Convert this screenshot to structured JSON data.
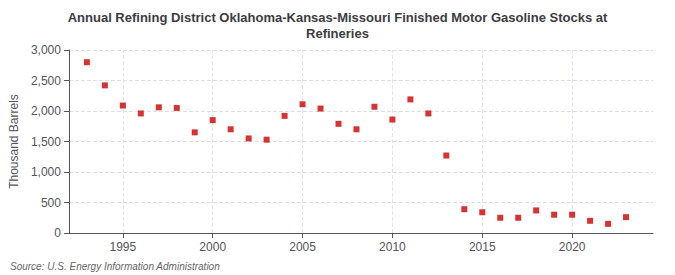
{
  "chart_data": {
    "type": "scatter",
    "title": "Annual Refining District Oklahoma-Kansas-Missouri Finished Motor Gasoline Stocks at\nRefineries",
    "ylabel": "Thousand Barrels",
    "source": "Source: U.S. Energy Information Administration",
    "x": [
      1993,
      1994,
      1995,
      1996,
      1997,
      1998,
      1999,
      2000,
      2001,
      2002,
      2003,
      2004,
      2005,
      2006,
      2007,
      2008,
      2009,
      2010,
      2011,
      2012,
      2013,
      2014,
      2015,
      2016,
      2017,
      2018,
      2019,
      2020,
      2021,
      2022,
      2023
    ],
    "values": [
      2800,
      2420,
      2090,
      1960,
      2060,
      2050,
      1650,
      1850,
      1700,
      1550,
      1530,
      1920,
      2110,
      2040,
      1790,
      1700,
      2070,
      1860,
      2190,
      1960,
      1270,
      390,
      340,
      250,
      250,
      370,
      300,
      300,
      200,
      150,
      260
    ],
    "color": "#cc0000",
    "marker": "square",
    "xlim": [
      1992.0,
      2024.5
    ],
    "xticks": [
      1995,
      2000,
      2005,
      2010,
      2015,
      2020
    ],
    "ylim": [
      0,
      3000
    ],
    "yticks": [
      0,
      500,
      {
        "value": 1000,
        "label": "1,000"
      },
      {
        "value": 1500,
        "label": "1,500"
      },
      {
        "value": 2000,
        "label": "2,000"
      },
      {
        "value": 2500,
        "label": "2,500"
      },
      {
        "value": 3000,
        "label": "3,000"
      }
    ],
    "grid": true
  }
}
